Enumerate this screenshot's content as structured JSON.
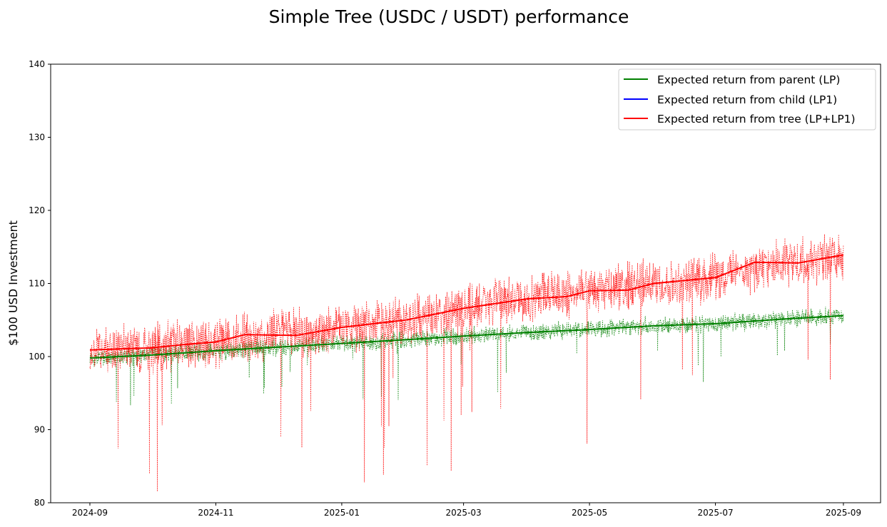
{
  "chart_data": {
    "type": "line",
    "title": "Simple Tree (USDC / USDT) performance",
    "xlabel": "",
    "ylabel": "$100 USD Investment",
    "x_axis_type": "date",
    "xlim": [
      "2024-08-13",
      "2025-09-19"
    ],
    "ylim": [
      80,
      140
    ],
    "xticks": [
      "2024-09",
      "2024-11",
      "2025-01",
      "2025-03",
      "2025-05",
      "2025-07",
      "2025-09"
    ],
    "yticks": [
      80,
      90,
      100,
      110,
      120,
      130,
      140
    ],
    "grid": false,
    "legend_position": "top-right",
    "colors": {
      "parent": "#008000",
      "child": "#0000ff",
      "tree": "#ff0000"
    },
    "series": [
      {
        "name": "Expected return from parent (LP)",
        "color": "#008000",
        "style": "solid",
        "x": [
          "2024-09-01",
          "2024-10-01",
          "2024-11-01",
          "2024-12-01",
          "2025-01-01",
          "2025-02-01",
          "2025-03-01",
          "2025-04-01",
          "2025-05-01",
          "2025-06-01",
          "2025-07-01",
          "2025-08-01",
          "2025-09-01"
        ],
        "values": [
          99.8,
          100.2,
          100.8,
          101.3,
          101.8,
          102.3,
          102.8,
          103.3,
          103.7,
          104.2,
          104.5,
          105.1,
          105.6
        ]
      },
      {
        "name": "Expected return from child (LP1)",
        "color": "#0000ff",
        "style": "solid",
        "x": [],
        "values": []
      },
      {
        "name": "Expected return from tree (LP+LP1)",
        "color": "#ff0000",
        "style": "solid",
        "x": [
          "2024-09-01",
          "2024-10-01",
          "2024-10-15",
          "2024-11-01",
          "2024-11-15",
          "2024-12-10",
          "2025-01-01",
          "2025-02-01",
          "2025-03-01",
          "2025-04-01",
          "2025-04-20",
          "2025-05-01",
          "2025-05-20",
          "2025-06-01",
          "2025-07-01",
          "2025-07-20",
          "2025-08-10",
          "2025-09-01"
        ],
        "values": [
          100.9,
          101.2,
          101.6,
          102.0,
          103.0,
          102.9,
          104.0,
          105.0,
          106.6,
          107.9,
          108.2,
          109.0,
          109.1,
          110.0,
          110.8,
          112.9,
          112.8,
          113.9
        ]
      },
      {
        "name": "",
        "color": "#008000",
        "style": "dotted",
        "x": [
          "2024-09-01",
          "2024-10-01",
          "2024-11-01",
          "2024-12-01",
          "2025-01-01",
          "2025-02-01",
          "2025-03-01",
          "2025-04-01",
          "2025-05-01",
          "2025-06-01",
          "2025-07-01",
          "2025-08-01",
          "2025-09-01"
        ],
        "values": [
          99.8,
          100.2,
          100.8,
          101.3,
          101.8,
          102.3,
          102.8,
          103.3,
          103.7,
          104.2,
          104.5,
          105.1,
          105.6
        ],
        "noise": 1.3
      },
      {
        "name": "",
        "color": "#ff0000",
        "style": "dotted",
        "x": [
          "2024-09-01",
          "2024-10-01",
          "2024-11-01",
          "2024-12-01",
          "2025-01-01",
          "2025-02-01",
          "2025-03-01",
          "2025-04-01",
          "2025-05-01",
          "2025-06-01",
          "2025-07-01",
          "2025-08-01",
          "2025-09-01"
        ],
        "values": [
          100.9,
          101.2,
          102.0,
          103.0,
          104.0,
          105.0,
          106.6,
          107.9,
          109.0,
          110.0,
          110.8,
          112.8,
          113.9
        ],
        "noise": 3.5
      }
    ]
  }
}
